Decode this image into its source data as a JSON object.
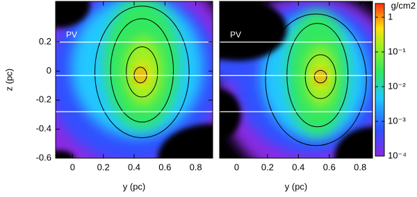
{
  "chart_data": [
    {
      "type": "image",
      "xlabel": "y (pc)",
      "ylabel": "z (pc)",
      "annotation": "PV",
      "xlim": [
        -0.11,
        0.91
      ],
      "ylim": [
        -0.6,
        0.48
      ],
      "xticks": [
        0,
        0.2,
        0.4,
        0.6,
        0.8
      ],
      "yticks": [
        -0.6,
        -0.4,
        -0.2,
        0,
        0.2
      ],
      "cuts": [
        0.2,
        -0.03,
        -0.28
      ]
    },
    {
      "type": "image",
      "xlabel": "y (pc)",
      "annotation": "PV",
      "xlim": [
        -0.11,
        0.88
      ],
      "ylim": [
        -0.6,
        0.48
      ],
      "xticks": [
        0,
        0.2,
        0.4,
        0.6,
        0.8
      ],
      "cuts": [
        0.2,
        -0.03,
        -0.28
      ],
      "colorbar": {
        "label": "g/cm2",
        "log": true,
        "clim": [
          0.0001,
          2.5
        ],
        "ticks": [
          1,
          {
            "value": 0.1,
            "label": "10⁻¹"
          },
          {
            "value": 0.01,
            "label": "10⁻²"
          },
          {
            "value": 0.001,
            "label": "10⁻³"
          },
          {
            "value": 0.0001,
            "label": "10⁻⁴"
          }
        ]
      }
    }
  ]
}
